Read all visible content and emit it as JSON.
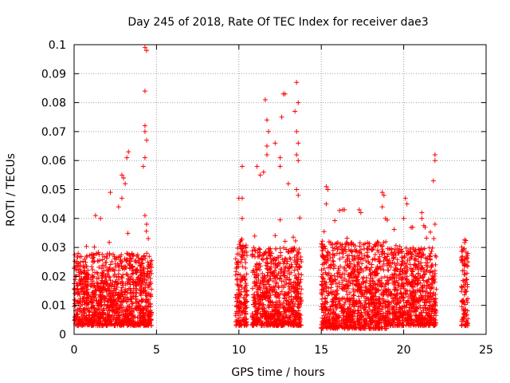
{
  "chart_data": {
    "type": "scatter",
    "title": "Day 245 of 2018, Rate Of TEC Index for receiver dae3",
    "xlabel": "GPS time / hours",
    "ylabel": "ROTI / TECUs",
    "xlim": [
      0,
      25
    ],
    "ylim": [
      0,
      0.1
    ],
    "xticks": [
      0,
      5,
      10,
      15,
      20,
      25
    ],
    "yticks": [
      0,
      0.01,
      0.02,
      0.03,
      0.04,
      0.05,
      0.06,
      0.07,
      0.08,
      0.09,
      0.1
    ],
    "grid": true,
    "marker": "+",
    "marker_color": "#ff0000",
    "clusters": [
      {
        "x_range": [
          0.0,
          4.7
        ],
        "typical_range": [
          0.003,
          0.028
        ]
      },
      {
        "x_range": [
          9.8,
          10.5
        ],
        "typical_range": [
          0.003,
          0.033
        ]
      },
      {
        "x_range": [
          10.8,
          13.8
        ],
        "typical_range": [
          0.003,
          0.03
        ]
      },
      {
        "x_range": [
          15.0,
          19.0
        ],
        "typical_range": [
          0.002,
          0.032
        ]
      },
      {
        "x_range": [
          19.0,
          22.0
        ],
        "typical_range": [
          0.003,
          0.03
        ]
      },
      {
        "x_range": [
          23.5,
          23.9
        ],
        "typical_range": [
          0.003,
          0.033
        ]
      }
    ],
    "points": [
      [
        4.3,
        0.099
      ],
      [
        4.4,
        0.098
      ],
      [
        4.3,
        0.084
      ],
      [
        4.3,
        0.072
      ],
      [
        4.3,
        0.07
      ],
      [
        4.4,
        0.067
      ],
      [
        4.3,
        0.061
      ],
      [
        4.2,
        0.058
      ],
      [
        3.3,
        0.063
      ],
      [
        3.2,
        0.061
      ],
      [
        2.9,
        0.055
      ],
      [
        3.0,
        0.054
      ],
      [
        3.1,
        0.052
      ],
      [
        2.2,
        0.049
      ],
      [
        2.9,
        0.047
      ],
      [
        2.7,
        0.044
      ],
      [
        1.3,
        0.041
      ],
      [
        1.6,
        0.04
      ],
      [
        4.3,
        0.041
      ],
      [
        4.4,
        0.038
      ],
      [
        10.2,
        0.058
      ],
      [
        10.0,
        0.047
      ],
      [
        10.2,
        0.047
      ],
      [
        10.2,
        0.04
      ],
      [
        11.1,
        0.058
      ],
      [
        11.3,
        0.055
      ],
      [
        11.5,
        0.056
      ],
      [
        11.6,
        0.081
      ],
      [
        11.7,
        0.074
      ],
      [
        11.8,
        0.07
      ],
      [
        11.7,
        0.065
      ],
      [
        11.7,
        0.062
      ],
      [
        12.2,
        0.066
      ],
      [
        12.5,
        0.061
      ],
      [
        12.5,
        0.058
      ],
      [
        12.6,
        0.075
      ],
      [
        12.7,
        0.083
      ],
      [
        12.8,
        0.083
      ],
      [
        13.0,
        0.052
      ],
      [
        13.5,
        0.087
      ],
      [
        13.6,
        0.08
      ],
      [
        13.4,
        0.077
      ],
      [
        13.5,
        0.07
      ],
      [
        13.6,
        0.066
      ],
      [
        13.5,
        0.062
      ],
      [
        13.6,
        0.06
      ],
      [
        13.5,
        0.05
      ],
      [
        13.6,
        0.048
      ],
      [
        15.3,
        0.051
      ],
      [
        15.4,
        0.05
      ],
      [
        15.3,
        0.045
      ],
      [
        16.3,
        0.043
      ],
      [
        16.4,
        0.043
      ],
      [
        17.3,
        0.043
      ],
      [
        17.4,
        0.042
      ],
      [
        18.7,
        0.049
      ],
      [
        18.8,
        0.048
      ],
      [
        18.7,
        0.044
      ],
      [
        18.9,
        0.04
      ],
      [
        20.1,
        0.047
      ],
      [
        20.2,
        0.045
      ],
      [
        20.0,
        0.04
      ],
      [
        21.1,
        0.042
      ],
      [
        21.1,
        0.04
      ],
      [
        21.9,
        0.062
      ],
      [
        21.9,
        0.06
      ],
      [
        21.8,
        0.053
      ],
      [
        21.9,
        0.038
      ]
    ]
  }
}
